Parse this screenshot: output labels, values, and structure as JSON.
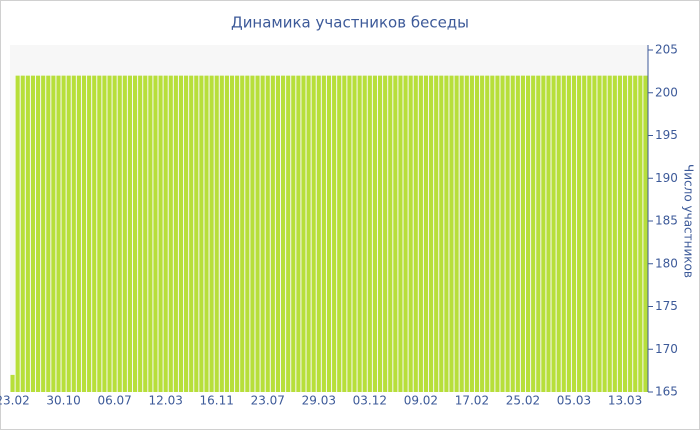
{
  "chart_data": {
    "type": "bar",
    "title": "Динамика участников беседы",
    "y_label": "Число участников",
    "categories": [
      "23.02",
      null,
      null,
      null,
      null,
      null,
      null,
      null,
      null,
      null,
      "30.10",
      null,
      null,
      null,
      null,
      null,
      null,
      null,
      null,
      null,
      "06.07",
      null,
      null,
      null,
      null,
      null,
      null,
      null,
      null,
      null,
      "12.03",
      null,
      null,
      null,
      null,
      null,
      null,
      null,
      null,
      null,
      "16.11",
      null,
      null,
      null,
      null,
      null,
      null,
      null,
      null,
      null,
      "23.07",
      null,
      null,
      null,
      null,
      null,
      null,
      null,
      null,
      null,
      "29.03",
      null,
      null,
      null,
      null,
      null,
      null,
      null,
      null,
      null,
      "03.12",
      null,
      null,
      null,
      null,
      null,
      null,
      null,
      null,
      null,
      "09.02",
      null,
      null,
      null,
      null,
      null,
      null,
      null,
      null,
      null,
      "17.02",
      null,
      null,
      null,
      null,
      null,
      null,
      null,
      null,
      null,
      "25.02",
      null,
      null,
      null,
      null,
      null,
      null,
      null,
      null,
      null,
      "05.03",
      null,
      null,
      null,
      null,
      null,
      null,
      null,
      null,
      null,
      "13.03",
      null,
      null,
      null,
      null
    ],
    "values": [
      167,
      202,
      202,
      202,
      202,
      202,
      202,
      202,
      202,
      202,
      202,
      202,
      202,
      202,
      202,
      202,
      202,
      202,
      202,
      202,
      202,
      202,
      202,
      202,
      202,
      202,
      202,
      202,
      202,
      202,
      202,
      202,
      202,
      202,
      202,
      202,
      202,
      202,
      202,
      202,
      202,
      202,
      202,
      202,
      202,
      202,
      202,
      202,
      202,
      202,
      202,
      202,
      202,
      202,
      202,
      202,
      202,
      202,
      202,
      202,
      202,
      202,
      202,
      202,
      202,
      202,
      202,
      202,
      202,
      202,
      202,
      202,
      202,
      202,
      202,
      202,
      202,
      202,
      202,
      202,
      202,
      202,
      202,
      202,
      202,
      202,
      202,
      202,
      202,
      202,
      202,
      202,
      202,
      202,
      202,
      202,
      202,
      202,
      202,
      202,
      202,
      202,
      202,
      202,
      202,
      202,
      202,
      202,
      202,
      202,
      202,
      202,
      202,
      202,
      202,
      202,
      202,
      202,
      202,
      202,
      202,
      202,
      202,
      202,
      202
    ],
    "color": "#b7df3a",
    "ylim": [
      165,
      205
    ],
    "yticks": [
      165,
      170,
      175,
      180,
      185,
      190,
      195,
      200,
      205
    ],
    "y_axis_side": "right"
  }
}
